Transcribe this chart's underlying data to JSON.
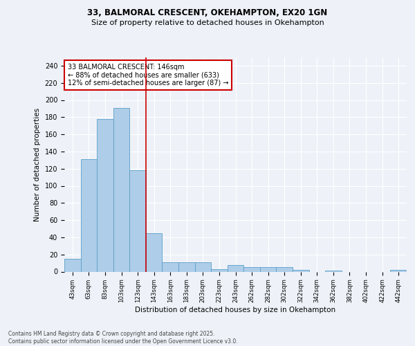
{
  "title1": "33, BALMORAL CRESCENT, OKEHAMPTON, EX20 1GN",
  "title2": "Size of property relative to detached houses in Okehampton",
  "xlabel": "Distribution of detached houses by size in Okehampton",
  "ylabel": "Number of detached properties",
  "bin_labels": [
    "43sqm",
    "63sqm",
    "83sqm",
    "103sqm",
    "123sqm",
    "143sqm",
    "163sqm",
    "183sqm",
    "203sqm",
    "223sqm",
    "243sqm",
    "262sqm",
    "282sqm",
    "302sqm",
    "322sqm",
    "342sqm",
    "362sqm",
    "382sqm",
    "402sqm",
    "422sqm",
    "442sqm"
  ],
  "bar_heights": [
    15,
    131,
    178,
    191,
    118,
    45,
    11,
    11,
    11,
    3,
    8,
    5,
    5,
    5,
    2,
    0,
    1,
    0,
    0,
    0,
    2
  ],
  "bar_color": "#aecde8",
  "bar_edge_color": "#5a9ec9",
  "vline_color": "#cc0000",
  "annotation_text": "33 BALMORAL CRESCENT: 146sqm\n← 88% of detached houses are smaller (633)\n12% of semi-detached houses are larger (87) →",
  "annotation_box_color": "#ffffff",
  "annotation_box_edge": "#cc0000",
  "ylim": [
    0,
    250
  ],
  "yticks": [
    0,
    20,
    40,
    60,
    80,
    100,
    120,
    140,
    160,
    180,
    200,
    220,
    240
  ],
  "footer_text": "Contains HM Land Registry data © Crown copyright and database right 2025.\nContains public sector information licensed under the Open Government Licence v3.0.",
  "bg_color": "#eef2f8",
  "plot_bg_color": "#eef2f8",
  "grid_color": "#ffffff"
}
